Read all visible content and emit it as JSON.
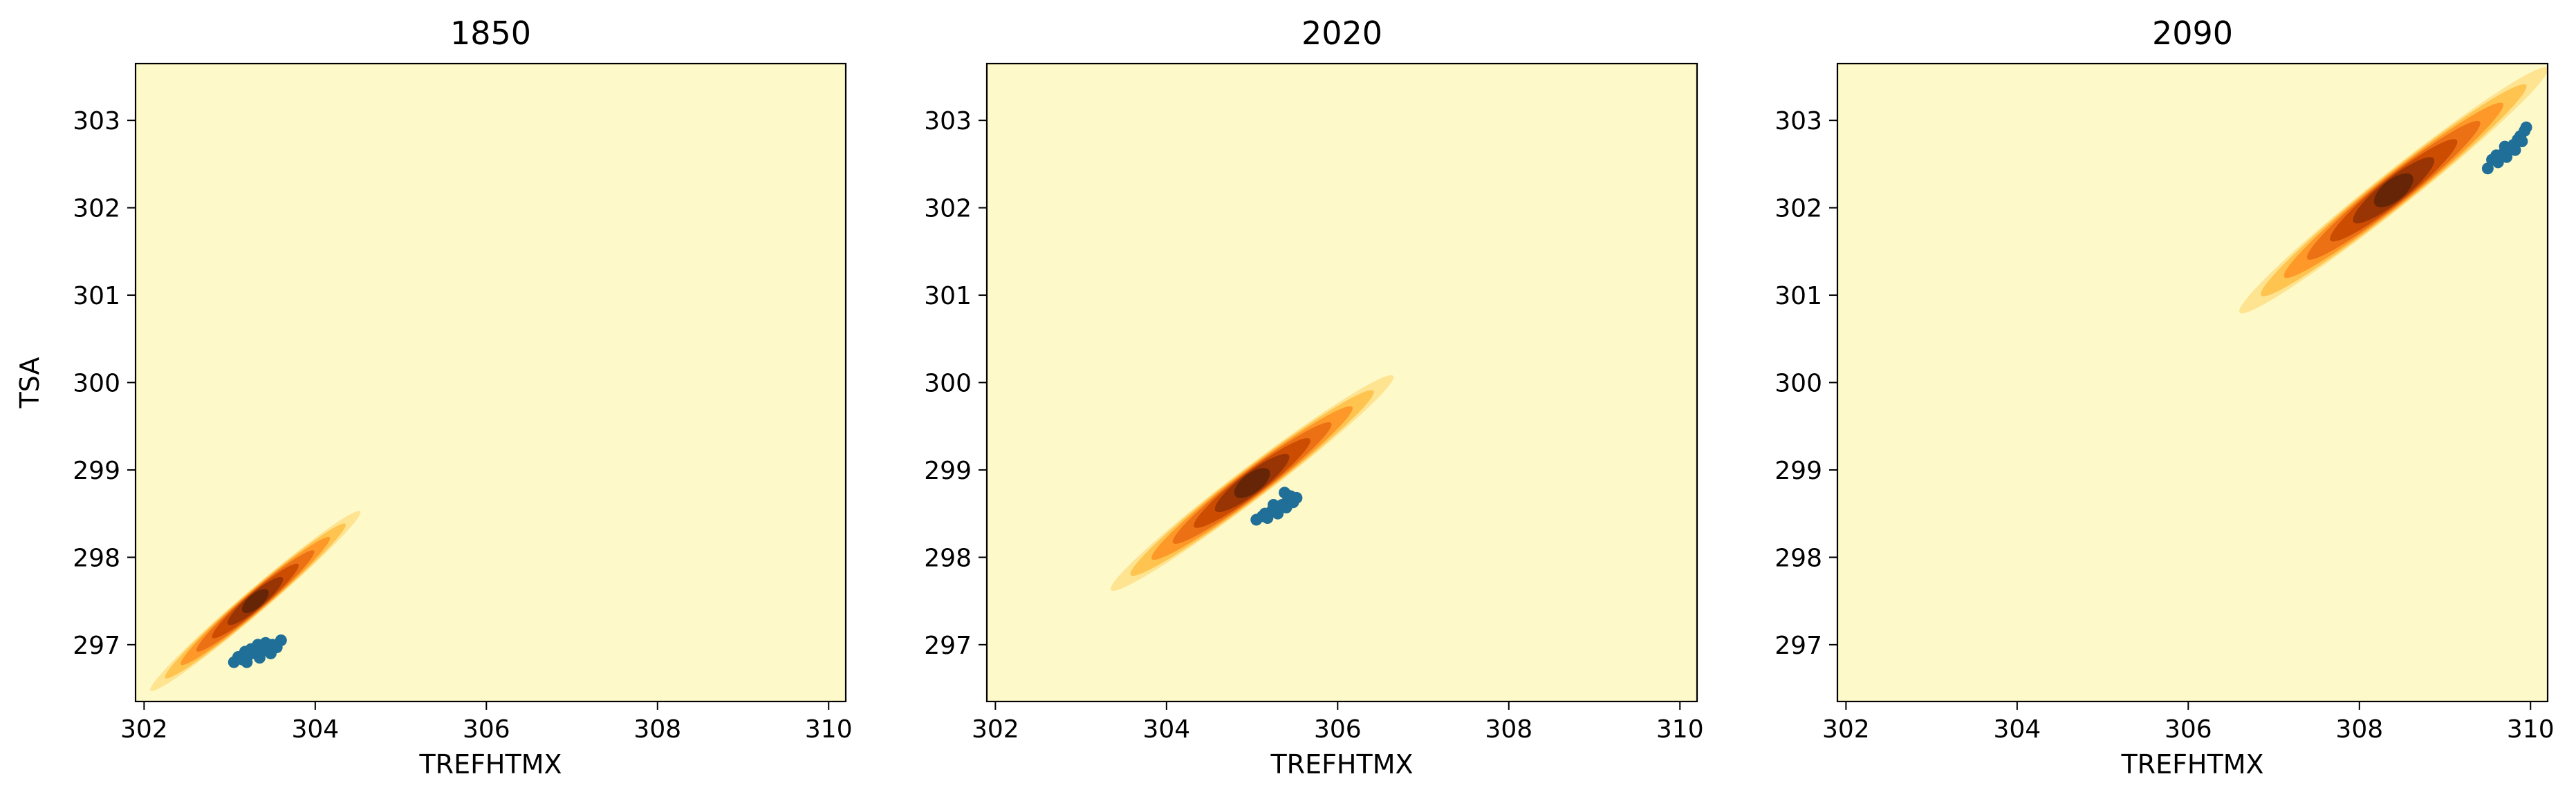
{
  "figure": {
    "background": "#ffffff",
    "panel_background": "#fef9c9",
    "density_colors": [
      "#fef9c9",
      "#fee391",
      "#fec44f",
      "#fe9929",
      "#ec7014",
      "#cc4c02",
      "#993404",
      "#662506"
    ],
    "point_color": "#1f6f98"
  },
  "chart_data": [
    {
      "type": "scatter",
      "title": "1850",
      "xlabel": "TREFHTMX",
      "ylabel": "TSA",
      "xlim": [
        301.9,
        310.2
      ],
      "ylim": [
        296.35,
        303.65
      ],
      "xticks": [
        302,
        304,
        306,
        308,
        310
      ],
      "yticks": [
        297,
        298,
        299,
        300,
        301,
        302,
        303
      ],
      "grid": false,
      "density": {
        "center": [
          303.3,
          297.5
        ],
        "span": [
          [
            302.15,
            296.5
          ],
          [
            304.6,
            298.55
          ]
        ],
        "width": 0.62
      },
      "points": [
        [
          303.05,
          296.8
        ],
        [
          303.1,
          296.86
        ],
        [
          303.15,
          296.83
        ],
        [
          303.18,
          296.92
        ],
        [
          303.22,
          296.88
        ],
        [
          303.25,
          296.95
        ],
        [
          303.3,
          296.9
        ],
        [
          303.33,
          297.0
        ],
        [
          303.38,
          296.95
        ],
        [
          303.42,
          297.02
        ],
        [
          303.45,
          296.93
        ],
        [
          303.5,
          297.0
        ],
        [
          303.55,
          296.97
        ],
        [
          303.6,
          297.05
        ],
        [
          303.2,
          296.8
        ],
        [
          303.35,
          296.85
        ],
        [
          303.48,
          296.9
        ]
      ]
    },
    {
      "type": "scatter",
      "title": "2020",
      "xlabel": "TREFHTMX",
      "ylabel": "",
      "xlim": [
        301.9,
        310.2
      ],
      "ylim": [
        296.35,
        303.65
      ],
      "xticks": [
        302,
        304,
        306,
        308,
        310
      ],
      "yticks": [
        297,
        298,
        299,
        300,
        301,
        302,
        303
      ],
      "grid": false,
      "density": {
        "center": [
          305.0,
          298.85
        ],
        "span": [
          [
            303.3,
            297.6
          ],
          [
            306.6,
            300.05
          ]
        ],
        "width": 0.66
      },
      "points": [
        [
          305.05,
          298.43
        ],
        [
          305.12,
          298.47
        ],
        [
          305.18,
          298.45
        ],
        [
          305.22,
          298.52
        ],
        [
          305.28,
          298.55
        ],
        [
          305.3,
          298.5
        ],
        [
          305.35,
          298.6
        ],
        [
          305.4,
          298.57
        ],
        [
          305.42,
          298.66
        ],
        [
          305.45,
          298.7
        ],
        [
          305.48,
          298.63
        ],
        [
          305.52,
          298.68
        ],
        [
          305.38,
          298.74
        ],
        [
          305.25,
          298.6
        ],
        [
          305.15,
          298.5
        ]
      ]
    },
    {
      "type": "scatter",
      "title": "2090",
      "xlabel": "TREFHTMX",
      "ylabel": "",
      "xlim": [
        301.9,
        310.2
      ],
      "ylim": [
        296.35,
        303.65
      ],
      "xticks": [
        302,
        304,
        306,
        308,
        310
      ],
      "yticks": [
        297,
        298,
        299,
        300,
        301,
        302,
        303
      ],
      "grid": false,
      "density": {
        "center": [
          308.4,
          302.2
        ],
        "span": [
          [
            306.6,
            300.8
          ],
          [
            310.2,
            303.6
          ]
        ],
        "width": 0.66
      },
      "points": [
        [
          309.5,
          302.45
        ],
        [
          309.55,
          302.55
        ],
        [
          309.62,
          302.52
        ],
        [
          309.68,
          302.62
        ],
        [
          309.72,
          302.58
        ],
        [
          309.75,
          302.68
        ],
        [
          309.8,
          302.72
        ],
        [
          309.82,
          302.66
        ],
        [
          309.85,
          302.78
        ],
        [
          309.88,
          302.82
        ],
        [
          309.9,
          302.76
        ],
        [
          309.93,
          302.88
        ],
        [
          309.95,
          302.92
        ],
        [
          309.6,
          302.6
        ],
        [
          309.7,
          302.7
        ]
      ]
    }
  ]
}
